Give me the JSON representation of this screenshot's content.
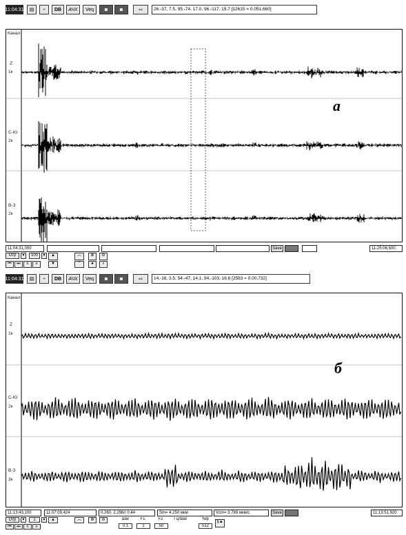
{
  "panel_a": {
    "toolbar": {
      "time": "11:04:31",
      "dk_label": "DB",
      "afr_label": "АЧХ",
      "veq_label": "Veq",
      "coords": "26.-37, 7.5, 95.-74, 17.0, 96.-117, 19.7 [12615 = 0.051.660]"
    },
    "kanal_label": "Канал",
    "channels": [
      {
        "name": "Z",
        "gain": "1к"
      },
      {
        "name": "С-Ю",
        "gain": "2к"
      },
      {
        "name": "В-З",
        "gain": "2к"
      }
    ],
    "letter": "а",
    "status": {
      "start_time": "11:04:31,000",
      "end_time": "11:25:06,500",
      "save_label": "Save"
    },
    "controls": {
      "filter": "Отр",
      "scale": "100"
    }
  },
  "panel_b": {
    "toolbar": {
      "time": "11:04:31",
      "dk_label": "DB",
      "afr_label": "АЧХ",
      "veq_label": "Veq",
      "coords": "14.-16, 3.5, 54.-47, 14.1, 94.-103, 16.6 [2583 = 0.00.732]"
    },
    "kanal_label": "Канал",
    "channels": [
      {
        "name": "Z",
        "gain": "1к"
      },
      {
        "name": "С-Ю",
        "gain": "2к"
      },
      {
        "name": "В-З",
        "gain": "3к"
      }
    ],
    "letter": "б",
    "status": {
      "start_time": "11:13:43,100",
      "cursor_time": "11:07:09,424",
      "range": "0.260, 2.296// 0.44",
      "sm": "Sm= 4.250 мкм",
      "vcm": "Vcm= 3.789 мкм/с",
      "save_label": "Save",
      "end_time": "11:13:51,920"
    },
    "controls": {
      "filter": "Отр",
      "scale": "1",
      "f1_label": "Шаг",
      "f1_value": "0.1",
      "f2_label": "F1",
      "f2_value": "1",
      "f3_label": "F2",
      "f3_value": "50",
      "f4_label": "Гц/Шаг",
      "f5_label": "Nф",
      "f5_value": "512"
    }
  }
}
